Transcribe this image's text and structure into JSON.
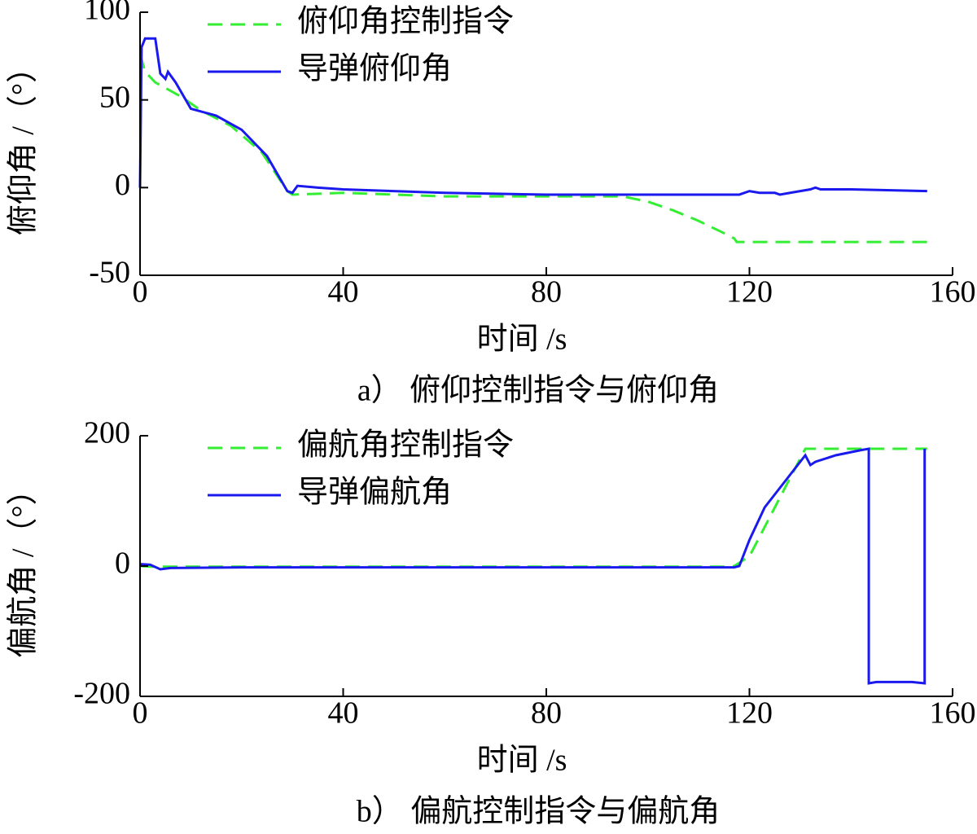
{
  "chart_data": [
    {
      "type": "line",
      "caption": "a） 俯仰控制指令与俯仰角",
      "xlabel": "时间 /s",
      "ylabel": "俯仰角 /（°）",
      "xlim": [
        0,
        160
      ],
      "xticks": [
        0,
        40,
        80,
        120,
        160
      ],
      "ylim": [
        -50,
        100
      ],
      "yticks": [
        -50,
        0,
        50,
        100
      ],
      "legend": "upper-left",
      "series": [
        {
          "name": "俯仰角控制指令",
          "color": "#33ee33",
          "dash": true,
          "x": [
            0,
            1,
            3,
            8,
            12,
            18,
            24,
            29,
            30,
            40,
            60,
            80,
            95,
            100,
            105,
            110,
            115,
            117,
            117.5,
            120,
            140,
            155
          ],
          "values": [
            76,
            66,
            60,
            52,
            44,
            35,
            20,
            -2,
            -4,
            -3,
            -5,
            -5,
            -5,
            -8,
            -13,
            -19,
            -26,
            -29,
            -31,
            -31,
            -31,
            -31
          ]
        },
        {
          "name": "导弹俯仰角",
          "color": "#1a1aee",
          "dash": false,
          "x": [
            0,
            0.3,
            1,
            3,
            4,
            5,
            5.5,
            7,
            10,
            15,
            20,
            25,
            29,
            30,
            31,
            35,
            40,
            60,
            80,
            100,
            118,
            120,
            122,
            125,
            126,
            128,
            132,
            133,
            134,
            140,
            155
          ],
          "values": [
            0,
            80,
            85,
            85,
            65,
            62,
            66,
            60,
            45,
            41,
            33,
            18,
            -2,
            -3,
            1,
            0,
            -1,
            -3,
            -4,
            -4,
            -4,
            -2,
            -3,
            -3,
            -4,
            -3,
            -1,
            0,
            -1,
            -1,
            -2
          ]
        }
      ]
    },
    {
      "type": "line",
      "caption": "b） 偏航控制指令与偏航角",
      "xlabel": "时间 /s",
      "ylabel": "偏航角 /（°）",
      "xlim": [
        0,
        160
      ],
      "xticks": [
        0,
        40,
        80,
        120,
        160
      ],
      "ylim": [
        -200,
        200
      ],
      "yticks": [
        -200,
        0,
        200
      ],
      "legend": "upper-left",
      "series": [
        {
          "name": "偏航角控制指令",
          "color": "#33ee33",
          "dash": true,
          "x": [
            0,
            2,
            4,
            20,
            115,
            117,
            120,
            125,
            131,
            155
          ],
          "values": [
            0,
            -1,
            -1,
            -1,
            -1,
            0,
            15,
            90,
            180,
            180
          ]
        },
        {
          "name": "导弹偏航角",
          "color": "#1a1aee",
          "dash": false,
          "x": [
            0,
            2,
            4,
            6,
            20,
            100,
            117,
            118,
            120,
            123,
            127,
            131,
            132,
            133,
            137,
            142,
            143.5,
            143.5,
            145,
            152,
            154.5,
            154.5
          ],
          "values": [
            3,
            2,
            -5,
            -3,
            -2,
            -2,
            -2,
            0,
            40,
            90,
            130,
            170,
            155,
            160,
            170,
            178,
            180,
            -180,
            -178,
            -178,
            -180,
            180
          ]
        }
      ]
    }
  ]
}
